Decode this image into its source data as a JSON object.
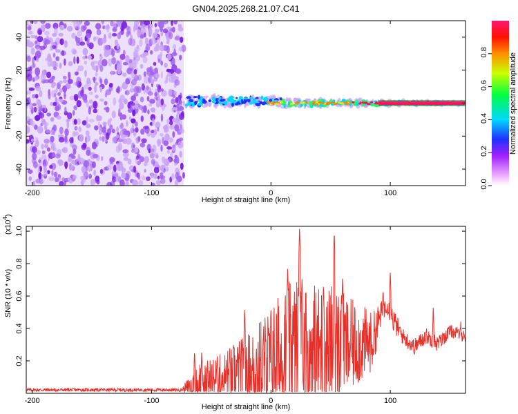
{
  "title": "GN04.2025.268.21.07.C41",
  "chart_data": [
    {
      "type": "heatmap",
      "name": "spectrogram",
      "xlabel": "Height of straight line (km)",
      "ylabel": "Frequency (Hz)",
      "xlim": [
        -205,
        163
      ],
      "ylim": [
        -50,
        50
      ],
      "xticks": [
        -200,
        -100,
        0,
        100
      ],
      "yticks": [
        -40,
        -20,
        0,
        20,
        40
      ],
      "noise_region_x": [
        -205,
        -73
      ],
      "signal_region_x": [
        -73,
        163
      ],
      "signal_frequency_hz": 0,
      "colorbar": {
        "label": "Normalized spectral amplitude",
        "range": [
          0,
          1
        ],
        "ticks": [
          0.0,
          0.2,
          0.4,
          0.6,
          0.8
        ],
        "tick_labels": [
          "0.0",
          "0.2",
          "0.4",
          "0.6",
          "0.8"
        ],
        "colors": [
          "#ffffff",
          "#f0a0ff",
          "#a000ff",
          "#2020ff",
          "#00e0ff",
          "#00ff40",
          "#e0ff00",
          "#ff8000",
          "#ff0000",
          "#ff1060"
        ]
      },
      "series_colors": {
        "noise": "#8a2be2",
        "noise_light": "#c9a4f4"
      }
    },
    {
      "type": "line",
      "name": "snr",
      "xlabel": "Height of straight line (km)",
      "ylabel": "SNR (10 * v/v)",
      "exponent_label": "(x10",
      "exponent_power": "4",
      "exponent_close": ")",
      "xlim": [
        -205,
        163
      ],
      "ylim": [
        0,
        1.03
      ],
      "xticks": [
        -200,
        -100,
        0,
        100
      ],
      "yticks": [
        0.2,
        0.4,
        0.6,
        0.8,
        1.0
      ],
      "ytick_labels": [
        "0.2",
        "0.4",
        "0.6",
        "0.8",
        "1.0"
      ],
      "color": "#e8302a",
      "envelope": {
        "x": [
          -205,
          -150,
          -100,
          -75,
          -62,
          -55,
          -45,
          -35,
          -25,
          -15,
          -5,
          5,
          15,
          25,
          35,
          45,
          55,
          65,
          75,
          85,
          92,
          97,
          102,
          110,
          120,
          130,
          140,
          150,
          163
        ],
        "base": [
          0.02,
          0.02,
          0.02,
          0.02,
          0.05,
          0.07,
          0.08,
          0.09,
          0.1,
          0.12,
          0.15,
          0.18,
          0.2,
          0.22,
          0.22,
          0.24,
          0.25,
          0.26,
          0.28,
          0.3,
          0.48,
          0.55,
          0.45,
          0.35,
          0.28,
          0.35,
          0.3,
          0.38,
          0.35
        ],
        "amp": [
          0.01,
          0.01,
          0.01,
          0.01,
          0.12,
          0.12,
          0.14,
          0.18,
          0.22,
          0.25,
          0.32,
          0.38,
          0.45,
          0.45,
          0.42,
          0.4,
          0.38,
          0.3,
          0.25,
          0.18,
          0.08,
          0.06,
          0.08,
          0.05,
          0.05,
          0.05,
          0.05,
          0.04,
          0.04
        ]
      },
      "peaks": [
        {
          "x": -64,
          "y": 0.28
        },
        {
          "x": -58,
          "y": 0.27
        },
        {
          "x": -22,
          "y": 0.53
        },
        {
          "x": 14,
          "y": 0.78
        },
        {
          "x": 24,
          "y": 1.03
        },
        {
          "x": 26,
          "y": 0.72
        },
        {
          "x": 44,
          "y": 0.68
        },
        {
          "x": 53,
          "y": 1.01
        },
        {
          "x": 60,
          "y": 0.72
        },
        {
          "x": 94,
          "y": 0.66
        },
        {
          "x": 100,
          "y": 0.77
        },
        {
          "x": 136,
          "y": 0.55
        },
        {
          "x": 159,
          "y": 0.46
        }
      ]
    }
  ]
}
